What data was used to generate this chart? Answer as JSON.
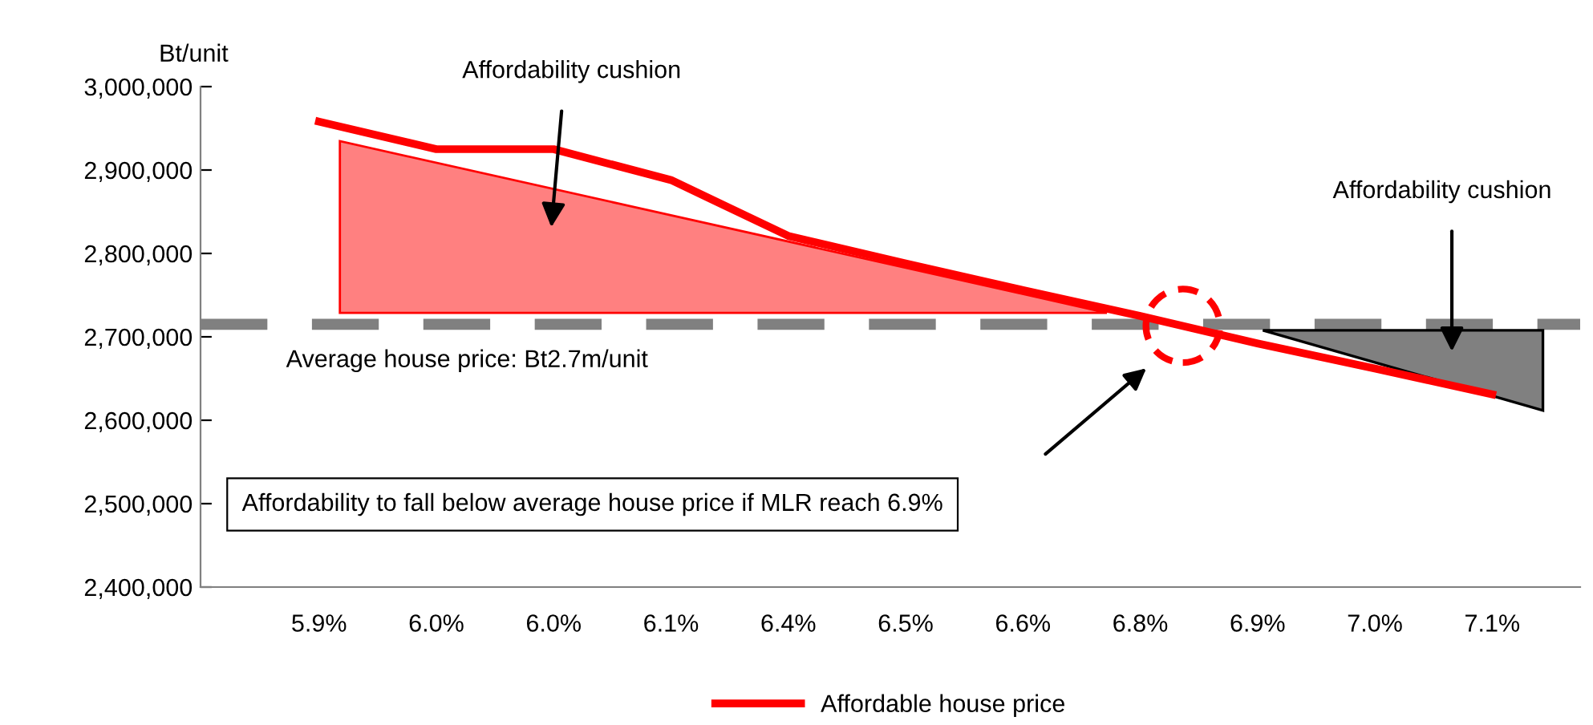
{
  "chart_data": {
    "type": "line",
    "ylabel": "Bt/unit",
    "categories": [
      "5.9%",
      "6.0%",
      "6.0%",
      "6.1%",
      "6.4%",
      "6.5%",
      "6.6%",
      "6.8%",
      "6.9%",
      "7.0%",
      "7.1%"
    ],
    "series": [
      {
        "name": "Affordable house price",
        "color": "#ff0000",
        "values": [
          2958000,
          2925000,
          2925000,
          2888000,
          2821000,
          2788000,
          2756000,
          2725000,
          2692000,
          2662000,
          2631000
        ]
      }
    ],
    "ylim": [
      2400000,
      3000000
    ],
    "yticks": [
      {
        "value": 2400000,
        "label": "2,400,000"
      },
      {
        "value": 2500000,
        "label": "2,500,000"
      },
      {
        "value": 2600000,
        "label": "2,600,000"
      },
      {
        "value": 2700000,
        "label": "2,700,000"
      },
      {
        "value": 2800000,
        "label": "2,800,000"
      },
      {
        "value": 2900000,
        "label": "2,900,000"
      },
      {
        "value": 3000000,
        "label": "3,000,000"
      }
    ],
    "ref_lines": [
      {
        "axis": "y",
        "value": 2715000,
        "label": "Average house price: Bt2.7m/unit",
        "color": "#808080",
        "line_style": "dashed"
      }
    ],
    "annotations": [
      "Affordability cushion",
      "Affordability cushion",
      "Affordability to fall below average house price if MLR reach 6.9%"
    ],
    "grid": false,
    "legend": "bottom",
    "marker": "none",
    "line_style": "solid"
  }
}
